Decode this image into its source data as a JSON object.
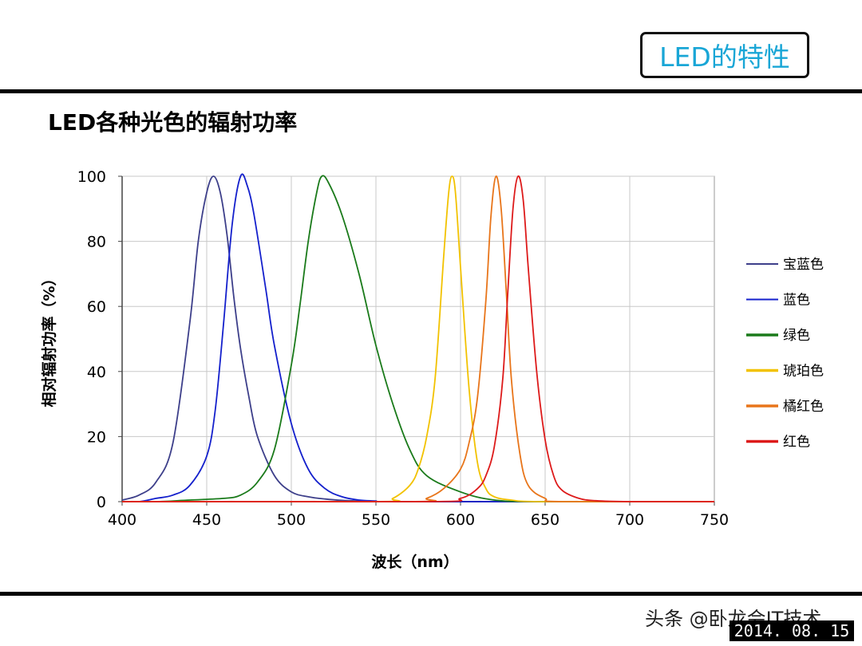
{
  "slide": {
    "title_box": "LED的特性",
    "heading": "LED各种光色的辐射功率",
    "watermark": "头条 @卧龙会IT技术",
    "date": "2014. 08. 15"
  },
  "chart_data": {
    "type": "line",
    "title": "",
    "xlabel": "波长（nm）",
    "ylabel": "相对辐射功率（%）",
    "xlim": [
      400,
      750
    ],
    "ylim": [
      0,
      100
    ],
    "xticks": [
      400,
      450,
      500,
      550,
      600,
      650,
      700,
      750
    ],
    "yticks": [
      0,
      20,
      40,
      60,
      80,
      100
    ],
    "grid": true,
    "legend_position": "right",
    "series": [
      {
        "name": "宝蓝色",
        "color": "#3d3f8a",
        "x": [
          400,
          410,
          420,
          430,
          440,
          445,
          450,
          454,
          458,
          462,
          466,
          470,
          475,
          480,
          490,
          500,
          510,
          520,
          530,
          540,
          550
        ],
        "y": [
          0.5,
          2,
          6,
          18,
          55,
          80,
          95,
          100,
          95,
          82,
          63,
          47,
          32,
          20,
          8,
          3,
          1.5,
          0.8,
          0.4,
          0.2,
          0
        ]
      },
      {
        "name": "蓝色",
        "color": "#1420cc",
        "x": [
          410,
          420,
          430,
          440,
          450,
          455,
          460,
          465,
          470,
          474,
          478,
          485,
          490,
          500,
          510,
          520,
          530,
          540,
          550,
          560
        ],
        "y": [
          0,
          1,
          2,
          5,
          14,
          28,
          55,
          85,
          100,
          97,
          88,
          65,
          48,
          24,
          10,
          4,
          1.5,
          0.5,
          0.2,
          0
        ]
      },
      {
        "name": "绿色",
        "color": "#1a7a1a",
        "x": [
          420,
          440,
          460,
          470,
          480,
          490,
          500,
          505,
          510,
          515,
          518,
          522,
          530,
          540,
          550,
          560,
          570,
          580,
          600,
          620,
          650
        ],
        "y": [
          0,
          0.5,
          1,
          2,
          6,
          16,
          42,
          60,
          80,
          95,
          100,
          98,
          88,
          70,
          48,
          30,
          16,
          8,
          3,
          0.5,
          0
        ]
      },
      {
        "name": "琥珀色",
        "color": "#f2c200",
        "x": [
          550,
          560,
          570,
          575,
          580,
          585,
          590,
          593,
          595,
          597,
          600,
          605,
          610,
          615,
          620,
          630,
          650
        ],
        "y": [
          0,
          1,
          5,
          10,
          20,
          38,
          75,
          95,
          100,
          95,
          72,
          35,
          12,
          4,
          1.5,
          0.5,
          0
        ]
      },
      {
        "name": "橘红色",
        "color": "#e8751a",
        "x": [
          570,
          580,
          590,
          600,
          605,
          610,
          615,
          618,
          621,
          624,
          627,
          630,
          635,
          640,
          650,
          660
        ],
        "y": [
          0,
          1,
          4,
          10,
          18,
          32,
          62,
          88,
          100,
          90,
          65,
          38,
          15,
          5,
          1,
          0
        ]
      },
      {
        "name": "红色",
        "color": "#dd1a1a",
        "x": [
          580,
          600,
          610,
          615,
          620,
          625,
          628,
          631,
          634,
          637,
          640,
          645,
          650,
          655,
          660,
          670,
          680,
          700,
          750
        ],
        "y": [
          0,
          1,
          4,
          8,
          17,
          38,
          65,
          90,
          100,
          93,
          72,
          40,
          19,
          8,
          3.5,
          1,
          0.3,
          0,
          0
        ]
      }
    ]
  }
}
